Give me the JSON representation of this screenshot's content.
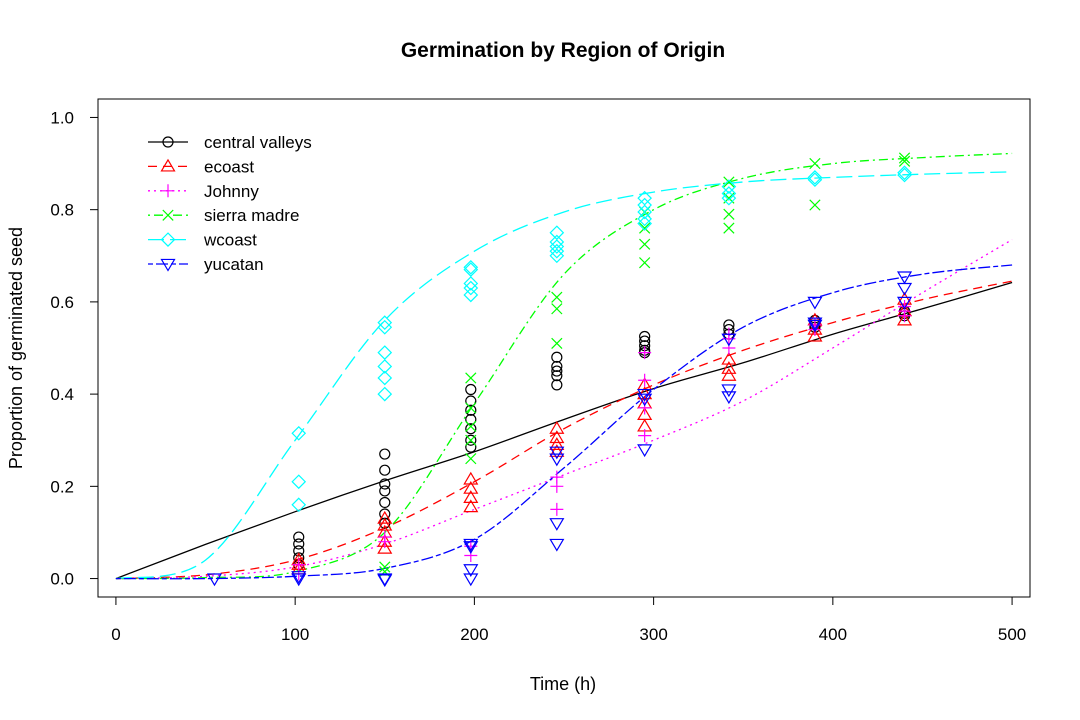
{
  "chart_data": {
    "type": "scatter",
    "title": "Germination by Region of Origin",
    "xlabel": "Time (h)",
    "ylabel": "Proportion of germinated seed",
    "xlim": [
      -10,
      510
    ],
    "ylim": [
      -0.04,
      1.04
    ],
    "xticks": [
      0,
      100,
      200,
      300,
      400,
      500
    ],
    "yticks": [
      0.0,
      0.2,
      0.4,
      0.6,
      0.8,
      1.0
    ],
    "xtick_labels": [
      "0",
      "100",
      "200",
      "300",
      "400",
      "500"
    ],
    "ytick_labels": [
      "0.0",
      "0.2",
      "0.4",
      "0.6",
      "0.8",
      "1.0"
    ],
    "grid": false,
    "legend_position": "top-left",
    "series": [
      {
        "name": "central valleys",
        "color": "#000000",
        "marker": "circle",
        "line": "solid",
        "fit": [
          [
            0,
            0
          ],
          [
            50,
            0.074
          ],
          [
            100,
            0.145
          ],
          [
            150,
            0.212
          ],
          [
            200,
            0.275
          ],
          [
            250,
            0.345
          ],
          [
            300,
            0.412
          ],
          [
            350,
            0.468
          ],
          [
            400,
            0.53
          ],
          [
            450,
            0.585
          ],
          [
            500,
            0.642
          ]
        ],
        "points": [
          [
            102,
            0.09
          ],
          [
            102,
            0.075
          ],
          [
            102,
            0.06
          ],
          [
            102,
            0.045
          ],
          [
            102,
            0.03
          ],
          [
            150,
            0.27
          ],
          [
            150,
            0.235
          ],
          [
            150,
            0.205
          ],
          [
            150,
            0.19
          ],
          [
            150,
            0.165
          ],
          [
            150,
            0.14
          ],
          [
            150,
            0.12
          ],
          [
            198,
            0.41
          ],
          [
            198,
            0.385
          ],
          [
            198,
            0.365
          ],
          [
            198,
            0.345
          ],
          [
            198,
            0.325
          ],
          [
            198,
            0.3
          ],
          [
            198,
            0.285
          ],
          [
            246,
            0.48
          ],
          [
            246,
            0.46
          ],
          [
            246,
            0.45
          ],
          [
            246,
            0.44
          ],
          [
            246,
            0.42
          ],
          [
            295,
            0.525
          ],
          [
            295,
            0.515
          ],
          [
            295,
            0.505
          ],
          [
            295,
            0.495
          ],
          [
            295,
            0.49
          ],
          [
            342,
            0.55
          ],
          [
            342,
            0.54
          ],
          [
            342,
            0.53
          ],
          [
            390,
            0.56
          ],
          [
            390,
            0.55
          ],
          [
            390,
            0.545
          ],
          [
            440,
            0.58
          ],
          [
            440,
            0.575
          ],
          [
            440,
            0.57
          ]
        ]
      },
      {
        "name": "ecoast",
        "color": "#ff0000",
        "marker": "triangle-up",
        "line": "dashed",
        "fit": [
          [
            0,
            0
          ],
          [
            50,
            0.008
          ],
          [
            100,
            0.04
          ],
          [
            150,
            0.11
          ],
          [
            200,
            0.21
          ],
          [
            250,
            0.325
          ],
          [
            300,
            0.42
          ],
          [
            350,
            0.495
          ],
          [
            400,
            0.555
          ],
          [
            450,
            0.605
          ],
          [
            500,
            0.645
          ]
        ],
        "points": [
          [
            102,
            0.04
          ],
          [
            102,
            0.03
          ],
          [
            102,
            0.02
          ],
          [
            150,
            0.13
          ],
          [
            150,
            0.115
          ],
          [
            150,
            0.1
          ],
          [
            150,
            0.08
          ],
          [
            150,
            0.065
          ],
          [
            198,
            0.215
          ],
          [
            198,
            0.195
          ],
          [
            198,
            0.175
          ],
          [
            198,
            0.155
          ],
          [
            246,
            0.325
          ],
          [
            246,
            0.305
          ],
          [
            246,
            0.29
          ],
          [
            246,
            0.275
          ],
          [
            295,
            0.42
          ],
          [
            295,
            0.4
          ],
          [
            295,
            0.38
          ],
          [
            295,
            0.355
          ],
          [
            295,
            0.33
          ],
          [
            342,
            0.475
          ],
          [
            342,
            0.455
          ],
          [
            342,
            0.44
          ],
          [
            390,
            0.56
          ],
          [
            390,
            0.54
          ],
          [
            390,
            0.525
          ],
          [
            440,
            0.605
          ],
          [
            440,
            0.58
          ],
          [
            440,
            0.56
          ]
        ]
      },
      {
        "name": "Johnny",
        "color": "#ff00ff",
        "marker": "plus",
        "line": "dotted",
        "fit": [
          [
            0,
            0
          ],
          [
            50,
            0.005
          ],
          [
            100,
            0.025
          ],
          [
            150,
            0.075
          ],
          [
            200,
            0.15
          ],
          [
            250,
            0.225
          ],
          [
            300,
            0.3
          ],
          [
            350,
            0.385
          ],
          [
            400,
            0.5
          ],
          [
            450,
            0.62
          ],
          [
            500,
            0.735
          ]
        ],
        "points": [
          [
            102,
            0.03
          ],
          [
            102,
            0.01
          ],
          [
            150,
            0.09
          ],
          [
            150,
            0.08
          ],
          [
            198,
            0.07
          ],
          [
            198,
            0.05
          ],
          [
            246,
            0.22
          ],
          [
            246,
            0.2
          ],
          [
            246,
            0.15
          ],
          [
            295,
            0.49
          ],
          [
            295,
            0.43
          ],
          [
            295,
            0.37
          ],
          [
            295,
            0.31
          ],
          [
            342,
            0.53
          ],
          [
            342,
            0.52
          ],
          [
            342,
            0.5
          ],
          [
            390,
            0.55
          ],
          [
            390,
            0.54
          ],
          [
            440,
            0.59
          ],
          [
            440,
            0.58
          ],
          [
            440,
            0.57
          ]
        ]
      },
      {
        "name": "sierra madre",
        "color": "#00ff00",
        "marker": "cross",
        "line": "dotdash",
        "fit": [
          [
            0,
            0
          ],
          [
            50,
            0.002
          ],
          [
            100,
            0.015
          ],
          [
            150,
            0.1
          ],
          [
            200,
            0.38
          ],
          [
            250,
            0.66
          ],
          [
            300,
            0.8
          ],
          [
            350,
            0.868
          ],
          [
            400,
            0.9
          ],
          [
            450,
            0.913
          ],
          [
            500,
            0.922
          ]
        ],
        "points": [
          [
            150,
            0.025
          ],
          [
            150,
            0.015
          ],
          [
            198,
            0.435
          ],
          [
            198,
            0.37
          ],
          [
            198,
            0.33
          ],
          [
            198,
            0.3
          ],
          [
            198,
            0.26
          ],
          [
            246,
            0.61
          ],
          [
            246,
            0.585
          ],
          [
            246,
            0.51
          ],
          [
            295,
            0.795
          ],
          [
            295,
            0.76
          ],
          [
            295,
            0.725
          ],
          [
            295,
            0.685
          ],
          [
            342,
            0.86
          ],
          [
            342,
            0.825
          ],
          [
            342,
            0.79
          ],
          [
            342,
            0.76
          ],
          [
            390,
            0.9
          ],
          [
            390,
            0.81
          ],
          [
            440,
            0.912
          ],
          [
            440,
            0.905
          ]
        ]
      },
      {
        "name": "wcoast",
        "color": "#00ffff",
        "marker": "diamond",
        "line": "longdash",
        "fit": [
          [
            0,
            0
          ],
          [
            50,
            0.04
          ],
          [
            100,
            0.3
          ],
          [
            150,
            0.56
          ],
          [
            200,
            0.71
          ],
          [
            250,
            0.795
          ],
          [
            300,
            0.838
          ],
          [
            350,
            0.86
          ],
          [
            400,
            0.87
          ],
          [
            450,
            0.877
          ],
          [
            500,
            0.882
          ]
        ],
        "points": [
          [
            102,
            0.315
          ],
          [
            102,
            0.21
          ],
          [
            102,
            0.16
          ],
          [
            150,
            0.555
          ],
          [
            150,
            0.545
          ],
          [
            150,
            0.49
          ],
          [
            150,
            0.46
          ],
          [
            150,
            0.435
          ],
          [
            150,
            0.4
          ],
          [
            198,
            0.675
          ],
          [
            198,
            0.67
          ],
          [
            198,
            0.64
          ],
          [
            198,
            0.63
          ],
          [
            198,
            0.615
          ],
          [
            246,
            0.75
          ],
          [
            246,
            0.73
          ],
          [
            246,
            0.72
          ],
          [
            246,
            0.71
          ],
          [
            246,
            0.7
          ],
          [
            295,
            0.825
          ],
          [
            295,
            0.81
          ],
          [
            295,
            0.795
          ],
          [
            295,
            0.78
          ],
          [
            295,
            0.77
          ],
          [
            342,
            0.85
          ],
          [
            342,
            0.835
          ],
          [
            342,
            0.825
          ],
          [
            390,
            0.87
          ],
          [
            390,
            0.865
          ],
          [
            440,
            0.88
          ],
          [
            440,
            0.875
          ]
        ]
      },
      {
        "name": "yucatan",
        "color": "#0000ff",
        "marker": "triangle-down",
        "line": "twodash",
        "fit": [
          [
            0,
            0
          ],
          [
            50,
            0.0
          ],
          [
            100,
            0.005
          ],
          [
            150,
            0.022
          ],
          [
            200,
            0.085
          ],
          [
            250,
            0.24
          ],
          [
            300,
            0.41
          ],
          [
            350,
            0.545
          ],
          [
            400,
            0.62
          ],
          [
            450,
            0.66
          ],
          [
            500,
            0.68
          ]
        ],
        "points": [
          [
            55,
            0.0
          ],
          [
            102,
            0.005
          ],
          [
            102,
            0.0
          ],
          [
            150,
            0.0
          ],
          [
            150,
            -0.002
          ],
          [
            198,
            0.075
          ],
          [
            198,
            0.07
          ],
          [
            198,
            0.02
          ],
          [
            198,
            0.0
          ],
          [
            246,
            0.275
          ],
          [
            246,
            0.26
          ],
          [
            246,
            0.12
          ],
          [
            246,
            0.075
          ],
          [
            295,
            0.4
          ],
          [
            295,
            0.39
          ],
          [
            295,
            0.28
          ],
          [
            342,
            0.52
          ],
          [
            342,
            0.41
          ],
          [
            342,
            0.395
          ],
          [
            390,
            0.6
          ],
          [
            390,
            0.555
          ],
          [
            390,
            0.55
          ],
          [
            440,
            0.655
          ],
          [
            440,
            0.63
          ],
          [
            440,
            0.6
          ]
        ]
      }
    ]
  }
}
